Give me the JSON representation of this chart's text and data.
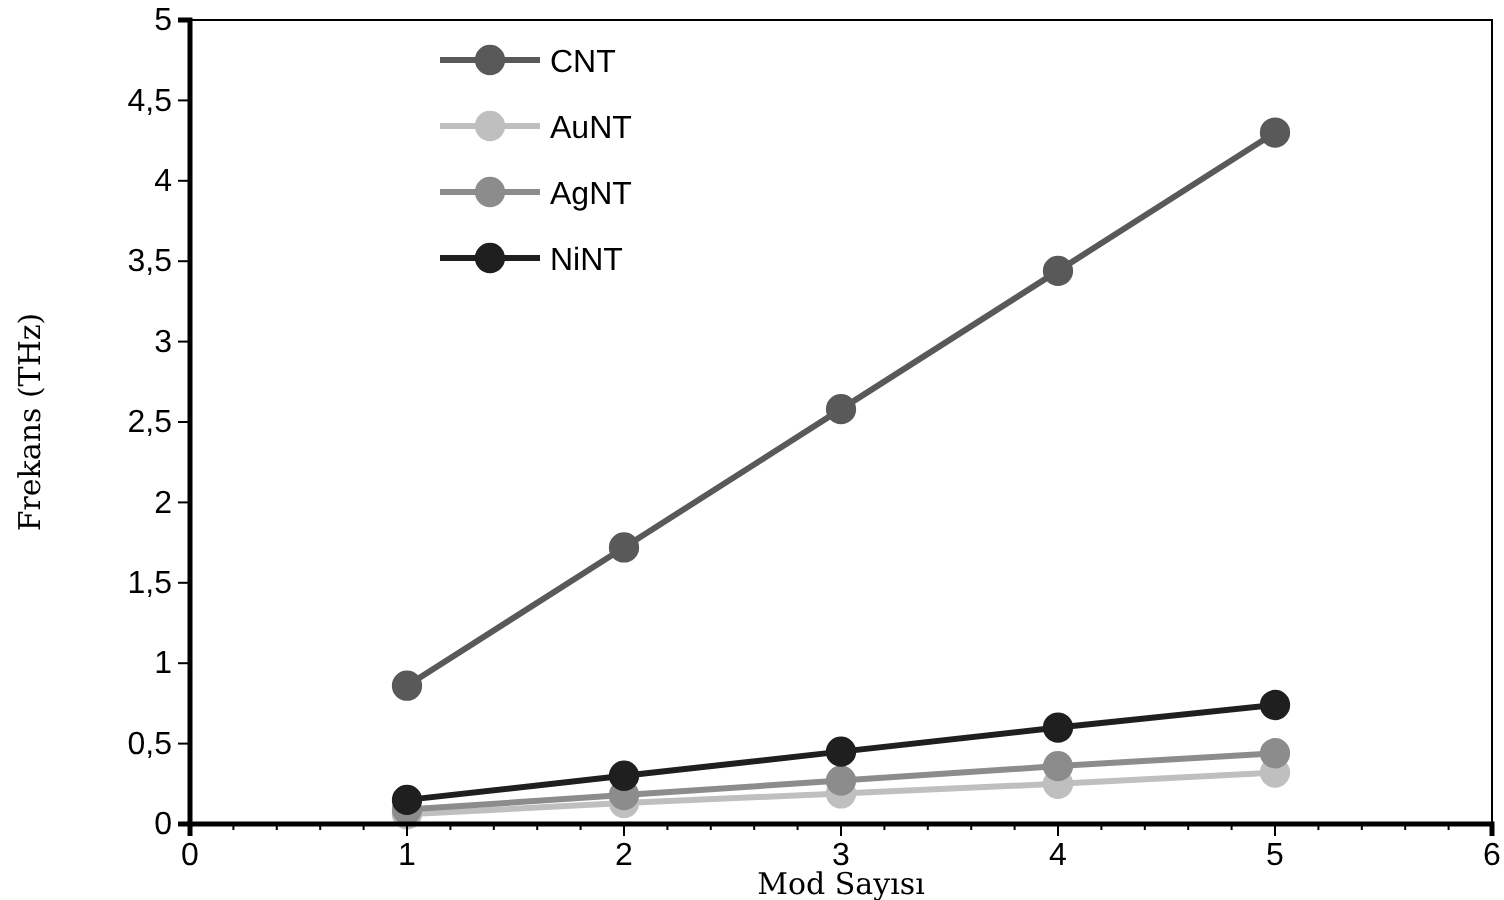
{
  "chart_data": {
    "type": "line",
    "xlabel": "Mod Sayısı",
    "ylabel": "Frekans (THz)",
    "x": [
      1,
      2,
      3,
      4,
      5
    ],
    "xlim": [
      0,
      6
    ],
    "xticks": [
      0,
      {
        "value": 0.2,
        "label": null
      },
      {
        "value": 0.4,
        "label": null
      },
      {
        "value": 0.6,
        "label": null
      },
      {
        "value": 0.8,
        "label": null
      },
      1,
      {
        "value": 1.2,
        "label": null
      },
      {
        "value": 1.4,
        "label": null
      },
      {
        "value": 1.6,
        "label": null
      },
      {
        "value": 1.8,
        "label": null
      },
      2,
      {
        "value": 2.2,
        "label": null
      },
      {
        "value": 2.4,
        "label": null
      },
      {
        "value": 2.6,
        "label": null
      },
      {
        "value": 2.8,
        "label": null
      },
      3,
      {
        "value": 3.2,
        "label": null
      },
      {
        "value": 3.4,
        "label": null
      },
      {
        "value": 3.6,
        "label": null
      },
      {
        "value": 3.8,
        "label": null
      },
      4,
      {
        "value": 4.2,
        "label": null
      },
      {
        "value": 4.4,
        "label": null
      },
      {
        "value": 4.6,
        "label": null
      },
      {
        "value": 4.8,
        "label": null
      },
      5,
      {
        "value": 5.2,
        "label": null
      },
      {
        "value": 5.4,
        "label": null
      },
      {
        "value": 5.6,
        "label": null
      },
      {
        "value": 5.8,
        "label": null
      },
      6
    ],
    "ylim": [
      0,
      5
    ],
    "yticks": [
      0,
      {
        "value": 0.5,
        "label": "0,5"
      },
      1,
      {
        "value": 1.5,
        "label": "1,5"
      },
      2,
      {
        "value": 2.5,
        "label": "2,5"
      },
      3,
      {
        "value": 3.5,
        "label": "3,5"
      },
      4,
      {
        "value": 4.5,
        "label": "4,5"
      },
      5
    ],
    "marker": "circle",
    "legend": "top left",
    "grid": false,
    "series": [
      {
        "name": "CNT",
        "color": "#595959",
        "values": [
          0.86,
          1.72,
          2.58,
          3.44,
          4.3
        ]
      },
      {
        "name": "AuNT",
        "color": "#bfbfbf",
        "values": [
          0.06,
          0.13,
          0.19,
          0.25,
          0.32
        ]
      },
      {
        "name": "AgNT",
        "color": "#8c8c8c",
        "values": [
          0.09,
          0.18,
          0.27,
          0.36,
          0.44
        ]
      },
      {
        "name": "NiNT",
        "color": "#1f1f1f",
        "values": [
          0.15,
          0.3,
          0.45,
          0.6,
          0.74
        ]
      }
    ]
  }
}
